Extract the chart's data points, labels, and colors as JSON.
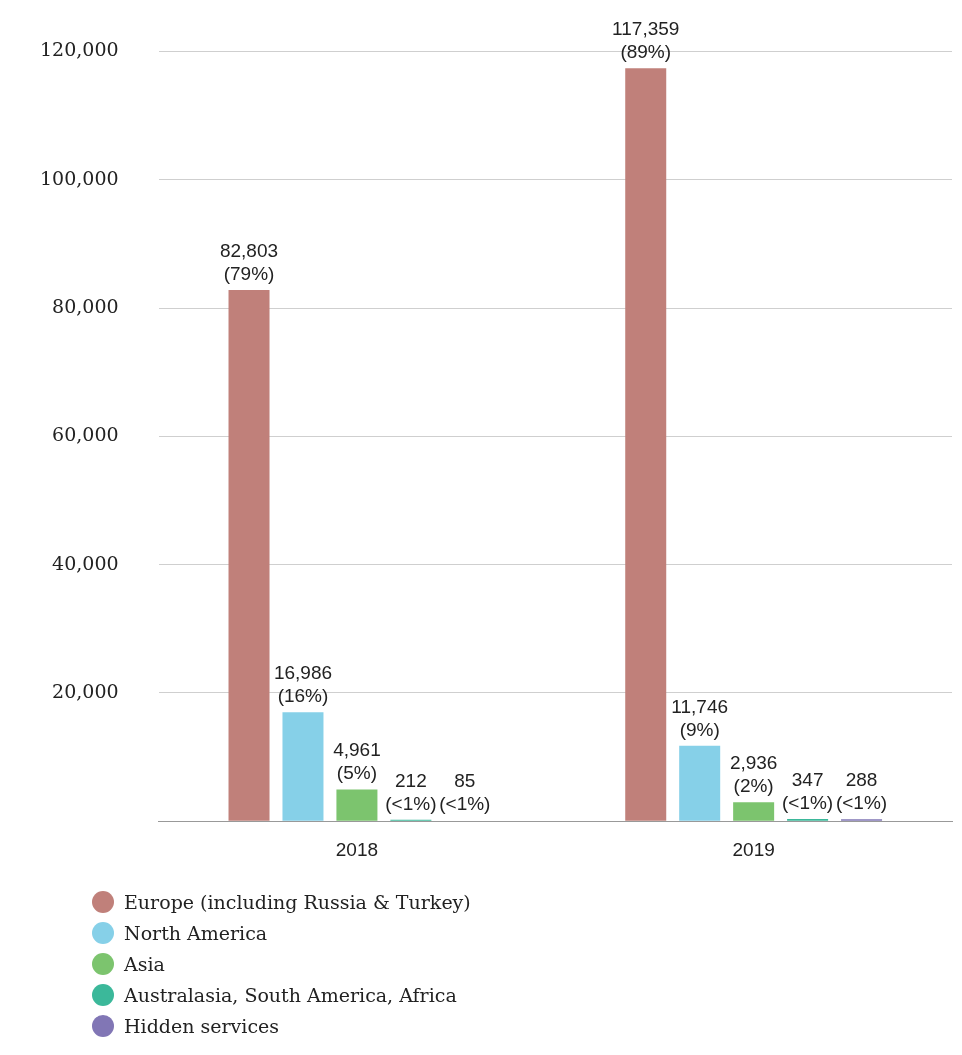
{
  "chart_data": {
    "type": "bar",
    "categories": [
      "2018",
      "2019"
    ],
    "series": [
      {
        "name": "Europe (including Russia & Turkey)",
        "color": "#c0807a",
        "values": [
          82803,
          117359
        ],
        "value_labels": [
          "82,803\n(79%)",
          "117,359\n(89%)"
        ]
      },
      {
        "name": "North America",
        "color": "#86d0e8",
        "values": [
          16986,
          11746
        ],
        "value_labels": [
          "16,986\n(16%)",
          "11,746\n(9%)"
        ]
      },
      {
        "name": "Asia",
        "color": "#7cc46e",
        "values": [
          4961,
          2936
        ],
        "value_labels": [
          "4,961\n(5%)",
          "2,936\n(2%)"
        ]
      },
      {
        "name": "Australasia, South America, Africa",
        "color": "#3bb89a",
        "values": [
          212,
          347
        ],
        "value_labels": [
          "212\n(<1%)",
          "347\n(<1%)"
        ]
      },
      {
        "name": "Hidden services",
        "color": "#8176b5",
        "values": [
          85,
          288
        ],
        "value_labels": [
          "85\n(<1%)",
          "288\n(<1%)"
        ]
      }
    ],
    "ylim": [
      0,
      120000
    ],
    "yticks": [
      {
        "value": 0,
        "label": null
      },
      {
        "value": 20000,
        "label": "20,000"
      },
      {
        "value": 40000,
        "label": "40,000"
      },
      {
        "value": 60000,
        "label": "60,000"
      },
      {
        "value": 80000,
        "label": "80,000"
      },
      {
        "value": 100000,
        "label": "100,000"
      },
      {
        "value": 120000,
        "label": "120,000"
      }
    ],
    "grid": "y",
    "legend": "bottom left"
  }
}
